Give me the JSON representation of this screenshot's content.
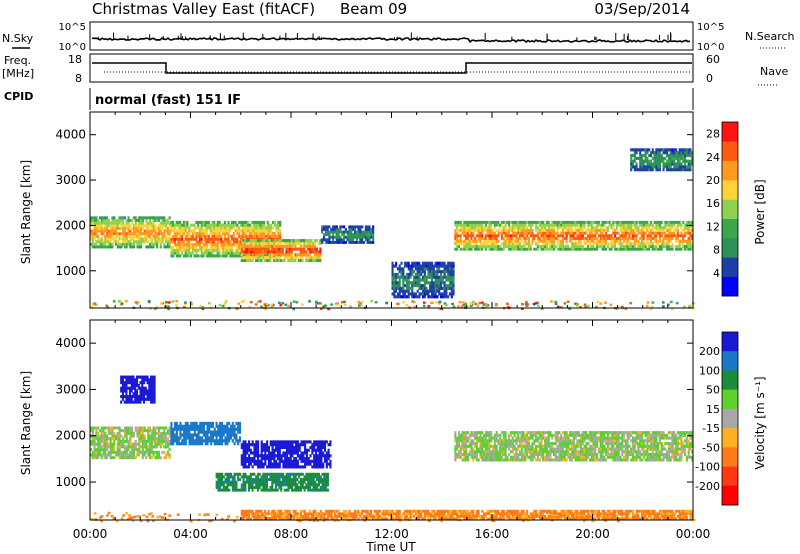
{
  "header": {
    "title": "Christmas Valley East (fitACF)",
    "beam": "Beam 09",
    "date": "03/Sep/2014"
  },
  "params": {
    "nsky_label": "N.Sky",
    "nsky_ticks": [
      "10^5",
      "10^0"
    ],
    "nsearch_label": "N.Search",
    "freq_label_line1": "Freq.",
    "freq_label_line2": "[MHz]",
    "freq_ticks": [
      "18",
      "8"
    ],
    "nave_ticks": [
      "60",
      "0"
    ],
    "nave_label": "Nave",
    "cpid_label": "CPID",
    "cpid_value": "normal (fast) 151 IF"
  },
  "colors": {
    "power_scale": [
      "#0000ff",
      "#1f3fa8",
      "#2e8f5a",
      "#3aa84a",
      "#8fd24f",
      "#ffd23a",
      "#ff9a1f",
      "#ff5a12",
      "#ff1414"
    ],
    "velocity_scale": [
      "#1a1ad6",
      "#1a78c8",
      "#1c8c3c",
      "#5cd12c",
      "#a8a8a8",
      "#ffb020",
      "#ff7a18",
      "#ff3a12",
      "#ff0000"
    ]
  },
  "chart_data": [
    {
      "type": "heatmap",
      "name": "power",
      "ylabel": "Slant Range [km]",
      "ylim": [
        180,
        4500
      ],
      "yticks": [
        1000,
        2000,
        3000,
        4000
      ],
      "xlim_hours": [
        0,
        24
      ],
      "colorbar_label": "Power [dB]",
      "colorbar_ticks": [
        4,
        8,
        12,
        16,
        20,
        24,
        28
      ],
      "colorbar_range": [
        0,
        30
      ],
      "echo_bands": [
        {
          "t0": 0.0,
          "t1": 3.2,
          "r0": 1500,
          "r1": 2200,
          "value": 22
        },
        {
          "t0": 3.2,
          "t1": 7.6,
          "r0": 1300,
          "r1": 2100,
          "value": 24
        },
        {
          "t0": 6.0,
          "t1": 9.2,
          "r0": 1200,
          "r1": 1700,
          "value": 26
        },
        {
          "t0": 9.2,
          "t1": 11.3,
          "r0": 1600,
          "r1": 2000,
          "value": 9
        },
        {
          "t0": 12.0,
          "t1": 14.5,
          "r0": 400,
          "r1": 1200,
          "value": 8
        },
        {
          "t0": 14.5,
          "t1": 24.0,
          "r0": 1450,
          "r1": 2100,
          "value": 24
        },
        {
          "t0": 21.5,
          "t1": 24.0,
          "r0": 3200,
          "r1": 3700,
          "value": 10
        }
      ]
    },
    {
      "type": "heatmap",
      "name": "velocity",
      "ylabel": "Slant Range [km]",
      "xlabel": "Time UT",
      "ylim": [
        180,
        4500
      ],
      "yticks": [
        1000,
        2000,
        3000,
        4000
      ],
      "xlim_hours": [
        0,
        24
      ],
      "xticks": [
        "00:00",
        "04:00",
        "08:00",
        "12:00",
        "16:00",
        "20:00",
        "00:00"
      ],
      "colorbar_label": "Velocity [m s⁻¹]",
      "colorbar_ticks": [
        200,
        100,
        50,
        15,
        -15,
        -50,
        -100,
        -200
      ],
      "echo_bands": [
        {
          "t0": 0.0,
          "t1": 3.2,
          "r0": 1500,
          "r1": 2200,
          "value": 0
        },
        {
          "t0": 1.2,
          "t1": 2.6,
          "r0": 2700,
          "r1": 3300,
          "value": 180
        },
        {
          "t0": 3.2,
          "t1": 6.0,
          "r0": 1800,
          "r1": 2300,
          "value": 120
        },
        {
          "t0": 6.0,
          "t1": 9.6,
          "r0": 1300,
          "r1": 1900,
          "value": 170
        },
        {
          "t0": 5.0,
          "t1": 9.5,
          "r0": 800,
          "r1": 1200,
          "value": 60
        },
        {
          "t0": 14.5,
          "t1": 24.0,
          "r0": 1450,
          "r1": 2100,
          "value": 0
        },
        {
          "t0": 6.0,
          "t1": 24.0,
          "r0": 180,
          "r1": 400,
          "value": -60
        }
      ]
    }
  ]
}
